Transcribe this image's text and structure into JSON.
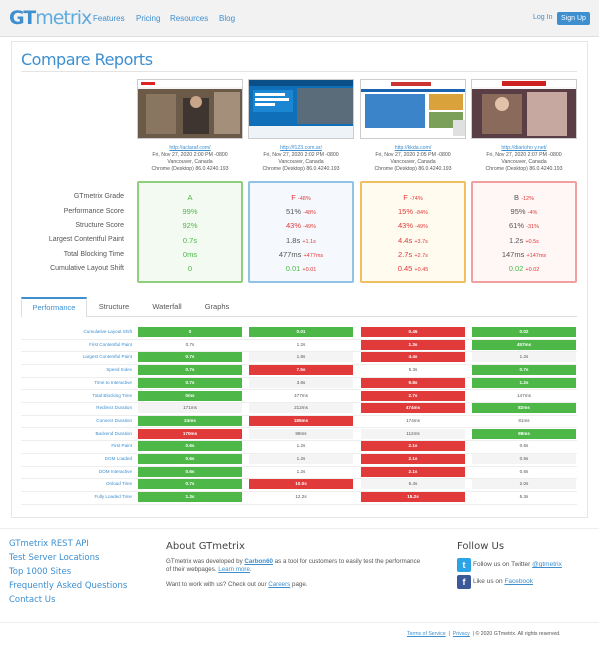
{
  "header": {
    "logo_g": "GT",
    "logo_rest": "metrix",
    "nav": [
      "Features",
      "Pricing",
      "Resources",
      "Blog"
    ],
    "login": "Log In",
    "signup": "Sign Up"
  },
  "page_title": "Compare Reports",
  "reports": [
    {
      "url": "http://aclaraf.com/",
      "date": "Fri, Nov 27, 2020 2:00 PM -0800",
      "location": "Vancouver, Canada",
      "browser": "Chrome (Desktop) 86.0.4240.193"
    },
    {
      "url": "http://f123.com.ar/",
      "date": "Fri, Nov 27, 2020 2:02 PM -0800",
      "location": "Vancouver, Canada",
      "browser": "Chrome (Desktop) 86.0.4240.193"
    },
    {
      "url": "http://kkda.com/",
      "date": "Fri, Nov 27, 2020 2:05 PM -0800",
      "location": "Vancouver, Canada",
      "browser": "Chrome (Desktop) 86.0.4240.193"
    },
    {
      "url": "http://diarioho y.net/",
      "date": "Fri, Nov 27, 2020 2:07 PM -0800",
      "location": "Vancouver, Canada",
      "browser": "Chrome (Desktop) 86.0.4240.193"
    }
  ],
  "metric_labels": [
    "GTmetrix Grade",
    "Performance Score",
    "Structure Score",
    "Largest Contentful Paint",
    "Total Blocking Time",
    "Cumulative Layout Shift"
  ],
  "scores": [
    {
      "grade": "A",
      "grade_d": "",
      "perf": "99%",
      "perf_d": "",
      "struct": "92%",
      "struct_d": "",
      "lcp": "0.7s",
      "lcp_d": "",
      "tbt": "0ms",
      "tbt_d": "",
      "cls": "0",
      "cls_d": "",
      "border": "#8fcf7d",
      "bg": "#f3faf1",
      "color": "#4db848"
    },
    {
      "grade": "F",
      "grade_d": "-48%",
      "perf": "51%",
      "perf_d": "-48%",
      "struct": "43%",
      "struct_d": "-49%",
      "lcp": "1.8s",
      "lcp_d": "+1.1s",
      "tbt": "477ms",
      "tbt_d": "+477ms",
      "cls": "0.01",
      "cls_d": "+0.01",
      "border": "#8fc3e6",
      "bg": "#f5f9fd",
      "color": "#555555"
    },
    {
      "grade": "F",
      "grade_d": "-74%",
      "perf": "15%",
      "perf_d": "-84%",
      "struct": "43%",
      "struct_d": "-49%",
      "lcp": "4.4s",
      "lcp_d": "+3.7s",
      "tbt": "2.7s",
      "tbt_d": "+2.7s",
      "cls": "0.45",
      "cls_d": "+0.45",
      "border": "#f0c060",
      "bg": "#fffbef",
      "color": "#e13a3a"
    },
    {
      "grade": "B",
      "grade_d": "-12%",
      "perf": "95%",
      "perf_d": "-4%",
      "struct": "61%",
      "struct_d": "-31%",
      "lcp": "1.2s",
      "lcp_d": "+0.5s",
      "tbt": "147ms",
      "tbt_d": "+147ms",
      "cls": "0.02",
      "cls_d": "+0.02",
      "border": "#f0a0a0",
      "bg": "#fff6f6",
      "color": "#555555"
    }
  ],
  "tabs": [
    "Performance",
    "Structure",
    "Waterfall",
    "Graphs"
  ],
  "detail_rows": [
    {
      "label": "Cumulative Layout Shift",
      "cells": [
        [
          "0",
          "g"
        ],
        [
          "0.01",
          "g"
        ],
        [
          "0.45",
          "r"
        ],
        [
          "0.02",
          "g"
        ]
      ]
    },
    {
      "label": "First Contentful Paint",
      "cells": [
        [
          "0.7s",
          "p"
        ],
        [
          "1.2s",
          "p"
        ],
        [
          "1.3s",
          "r"
        ],
        [
          "457ms",
          "g"
        ]
      ]
    },
    {
      "label": "Largest Contentful Paint",
      "cells": [
        [
          "0.7s",
          "g"
        ],
        [
          "1.8s",
          "s"
        ],
        [
          "4.4s",
          "r"
        ],
        [
          "1.2s",
          "s"
        ]
      ]
    },
    {
      "label": "Speed Index",
      "cells": [
        [
          "0.7s",
          "g"
        ],
        [
          "7.5s",
          "r"
        ],
        [
          "5.3s",
          "p"
        ],
        [
          "0.7s",
          "g"
        ]
      ]
    },
    {
      "label": "Time to Interactive",
      "cells": [
        [
          "0.7s",
          "g"
        ],
        [
          "3.8s",
          "s"
        ],
        [
          "9.8s",
          "r"
        ],
        [
          "1.2s",
          "g"
        ]
      ]
    },
    {
      "label": "Total Blocking Time",
      "cells": [
        [
          "0ms",
          "g"
        ],
        [
          "477ms",
          "p"
        ],
        [
          "2.7s",
          "r"
        ],
        [
          "147ms",
          "p"
        ]
      ]
    },
    {
      "label": "Redirect Duration",
      "cells": [
        [
          "171ms",
          "s"
        ],
        [
          "212ms",
          "s"
        ],
        [
          "474ms",
          "r"
        ],
        [
          "82ms",
          "g"
        ]
      ]
    },
    {
      "label": "Connect Duration",
      "cells": [
        [
          "24ms",
          "g"
        ],
        [
          "185ms",
          "r"
        ],
        [
          "174ms",
          "p"
        ],
        [
          "81ms",
          "p"
        ]
      ]
    },
    {
      "label": "Backend Duration",
      "cells": [
        [
          "170ms",
          "r"
        ],
        [
          "99ms",
          "s"
        ],
        [
          "112ms",
          "s"
        ],
        [
          "98ms",
          "g"
        ]
      ]
    },
    {
      "label": "First Paint",
      "cells": [
        [
          "0.6s",
          "g"
        ],
        [
          "1.2s",
          "p"
        ],
        [
          "2.1s",
          "r"
        ],
        [
          "0.6s",
          "p"
        ]
      ]
    },
    {
      "label": "DOM Loaded",
      "cells": [
        [
          "0.6s",
          "g"
        ],
        [
          "1.2s",
          "s"
        ],
        [
          "2.1s",
          "r"
        ],
        [
          "0.6s",
          "s"
        ]
      ]
    },
    {
      "label": "DOM Interactive",
      "cells": [
        [
          "0.6s",
          "g"
        ],
        [
          "1.2s",
          "p"
        ],
        [
          "2.1s",
          "r"
        ],
        [
          "0.6s",
          "p"
        ]
      ]
    },
    {
      "label": "Onload Time",
      "cells": [
        [
          "0.7s",
          "g"
        ],
        [
          "10.0s",
          "r"
        ],
        [
          "5.4s",
          "s"
        ],
        [
          "2.0s",
          "s"
        ]
      ]
    },
    {
      "label": "Fully Loaded Time",
      "cells": [
        [
          "1.3s",
          "g"
        ],
        [
          "12.2s",
          "p"
        ],
        [
          "15.2s",
          "r"
        ],
        [
          "5.3s",
          "p"
        ]
      ]
    }
  ],
  "footer": {
    "links": [
      "GTmetrix REST API",
      "Test Server Locations",
      "Top 1000 Sites",
      "Frequently Asked Questions",
      "Contact Us"
    ],
    "about_title": "About GTmetrix",
    "about_p1_a": "GTmetrix was developed by ",
    "about_p1_link": "Carbon60",
    "about_p1_b": " as a tool for customers to easily test the performance of their webpages. ",
    "about_p1_learn": "Learn more",
    "about_p1_end": ".",
    "about_p2_a": "Want to work with us? Check out our ",
    "about_p2_link": "Careers",
    "about_p2_b": " page.",
    "follow_title": "Follow Us",
    "twitter_pre": "Follow us on Twitter ",
    "twitter_handle": "@gtmetrix",
    "facebook_pre": "Like us on ",
    "facebook_link": "Facebook",
    "terms": "Terms of Service",
    "privacy": "Privacy",
    "copyright": "| © 2020 GTmetrix. All rights reserved."
  },
  "colors": {
    "accent": "#3d8fd0",
    "good": "#4db848",
    "bad": "#e13a3a"
  }
}
